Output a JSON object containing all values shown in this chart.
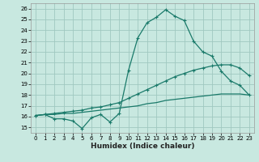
{
  "background_color": "#c8e8e0",
  "grid_color": "#a0c8c0",
  "line_color": "#1a7a6a",
  "xlabel": "Humidex (Indice chaleur)",
  "xlim": [
    -0.5,
    23.5
  ],
  "ylim": [
    14.5,
    26.5
  ],
  "yticks": [
    15,
    16,
    17,
    18,
    19,
    20,
    21,
    22,
    23,
    24,
    25,
    26
  ],
  "xticks": [
    0,
    1,
    2,
    3,
    4,
    5,
    6,
    7,
    8,
    9,
    10,
    11,
    12,
    13,
    14,
    15,
    16,
    17,
    18,
    19,
    20,
    21,
    22,
    23
  ],
  "line1_x": [
    0,
    1,
    2,
    3,
    4,
    5,
    6,
    7,
    8,
    9,
    10,
    11,
    12,
    13,
    14,
    15,
    16,
    17,
    18,
    19,
    20,
    21,
    22,
    23
  ],
  "line1_y": [
    16.1,
    16.2,
    15.8,
    15.8,
    15.6,
    14.9,
    15.9,
    16.2,
    15.5,
    16.3,
    20.3,
    23.3,
    24.7,
    25.2,
    25.9,
    25.3,
    24.9,
    23.0,
    22.0,
    21.6,
    20.2,
    19.3,
    18.9,
    18.0
  ],
  "line2_x": [
    0,
    1,
    2,
    3,
    4,
    5,
    6,
    7,
    8,
    9,
    10,
    11,
    12,
    13,
    14,
    15,
    16,
    17,
    18,
    19,
    20,
    21,
    22,
    23
  ],
  "line2_y": [
    16.1,
    16.2,
    16.3,
    16.4,
    16.5,
    16.6,
    16.8,
    16.9,
    17.1,
    17.3,
    17.7,
    18.1,
    18.5,
    18.9,
    19.3,
    19.7,
    20.0,
    20.3,
    20.5,
    20.7,
    20.8,
    20.8,
    20.5,
    19.8
  ],
  "line3_x": [
    0,
    1,
    2,
    3,
    4,
    5,
    6,
    7,
    8,
    9,
    10,
    11,
    12,
    13,
    14,
    15,
    16,
    17,
    18,
    19,
    20,
    21,
    22,
    23
  ],
  "line3_y": [
    16.1,
    16.2,
    16.2,
    16.3,
    16.3,
    16.4,
    16.5,
    16.6,
    16.7,
    16.8,
    16.9,
    17.0,
    17.2,
    17.3,
    17.5,
    17.6,
    17.7,
    17.8,
    17.9,
    18.0,
    18.1,
    18.1,
    18.1,
    18.0
  ]
}
